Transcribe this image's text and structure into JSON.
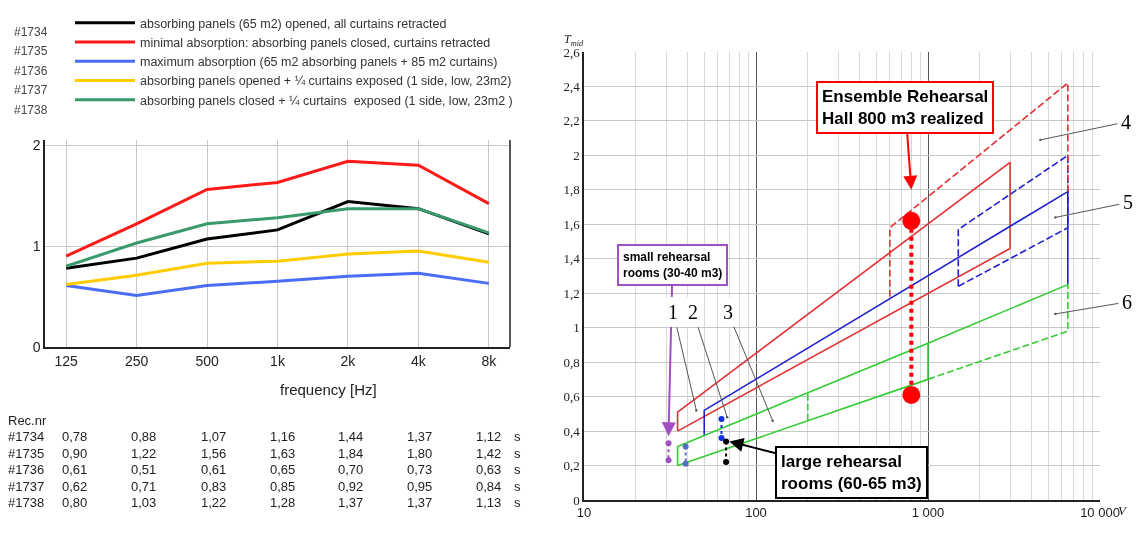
{
  "chart_data": [
    {
      "type": "line",
      "xlabel": "frequency [Hz]",
      "categories": [
        "125",
        "250",
        "500",
        "1k",
        "2k",
        "4k",
        "8k"
      ],
      "ylim": [
        0,
        2.05
      ],
      "yticks": [
        0,
        1,
        2
      ],
      "grid": true,
      "legend": "top",
      "annotations": [
        "#1734",
        "#1735",
        "#1736",
        "#1737",
        "#1738",
        "Rec.nr",
        "s"
      ],
      "series": [
        {
          "name": "absorbing panels (65 m2) opened, all curtains retracted",
          "color": "#000000",
          "values": [
            0.78,
            0.88,
            1.07,
            1.16,
            1.44,
            1.37,
            1.12
          ],
          "value_labels": [
            "0,78",
            "0,88",
            "1,07",
            "1,16",
            "1,44",
            "1,37",
            "1,12"
          ]
        },
        {
          "name": "minimal absorption: absorbing panels closed, curtains retracted",
          "color": "#ff1a1a",
          "values": [
            0.9,
            1.22,
            1.56,
            1.63,
            1.84,
            1.8,
            1.42
          ],
          "value_labels": [
            "0,90",
            "1,22",
            "1,56",
            "1,63",
            "1,84",
            "1,80",
            "1,42"
          ]
        },
        {
          "name": "maximum absorption (65 m2 absorbing panels + 85 m2 curtains)",
          "color": "#4a6cf7",
          "values": [
            0.61,
            0.51,
            0.61,
            0.65,
            0.7,
            0.73,
            0.63
          ],
          "value_labels": [
            "0,61",
            "0,51",
            "0,61",
            "0,65",
            "0,70",
            "0,73",
            "0,63"
          ]
        },
        {
          "name": "absorbing panels opened + ¼ curtains exposed (1 side, low, 23m2)",
          "color": "#ffcc00",
          "values": [
            0.62,
            0.71,
            0.83,
            0.85,
            0.92,
            0.95,
            0.84
          ],
          "value_labels": [
            "0,62",
            "0,71",
            "0,83",
            "0,85",
            "0,92",
            "0,95",
            "0,84"
          ]
        },
        {
          "name": "absorbing panels closed + ¼ curtains  exposed (1 side, low, 23m2 )",
          "color": "#3a9a6a",
          "values": [
            0.8,
            1.03,
            1.22,
            1.28,
            1.37,
            1.37,
            1.13
          ],
          "value_labels": [
            "0,80",
            "1,03",
            "1,22",
            "1,28",
            "1,37",
            "1,37",
            "1,13"
          ]
        }
      ]
    },
    {
      "type": "line",
      "xlabel": "V",
      "ylabel": "T$_{mid}$",
      "log": "x",
      "grid": true,
      "xlim": [
        10,
        10000
      ],
      "xticks": [
        10,
        100,
        {
          "value": 1000,
          "label": "1 000"
        },
        {
          "value": 10000,
          "label": "10 000"
        }
      ],
      "ylim": [
        0,
        2.6
      ],
      "yticks": [
        0,
        {
          "value": 0.2,
          "label": "0,2"
        },
        {
          "value": 0.4,
          "label": "0,4"
        },
        {
          "value": 0.6,
          "label": "0,6"
        },
        {
          "value": 0.8,
          "label": "0,8"
        },
        1,
        {
          "value": 1.2,
          "label": "1,2"
        },
        {
          "value": 1.4,
          "label": "1,4"
        },
        {
          "value": 1.6,
          "label": "1,6"
        },
        {
          "value": 1.8,
          "label": "1,8"
        },
        2,
        {
          "value": 2.2,
          "label": "2,2"
        },
        {
          "value": 2.4,
          "label": "2,4"
        },
        {
          "value": 2.6,
          "label": "2,6"
        }
      ],
      "series": [
        {
          "color": "#e03030",
          "line_style": "solid",
          "marker": "none",
          "x": [
            35,
            35,
            3000,
            3000
          ],
          "values": [
            0.4,
            0.51,
            1.96,
            1.46
          ]
        },
        {
          "color": "#e03030",
          "line_style": "solid",
          "marker": "none",
          "x": [
            35,
            3000
          ],
          "values": [
            0.4,
            1.46
          ]
        },
        {
          "color": "#2020d0",
          "line_style": "solid",
          "marker": "none",
          "x": [
            50,
            50,
            6500,
            6500
          ],
          "values": [
            0.37,
            0.52,
            1.79,
            1.25
          ]
        },
        {
          "color": "#2020d0",
          "line_style": "dashed",
          "marker": "none",
          "x": [
            1500,
            1500,
            6500,
            6500
          ],
          "values": [
            1.24,
            1.57,
            2.0,
            1.58
          ]
        },
        {
          "color": "#2020d0",
          "line_style": "dashed",
          "marker": "none",
          "x": [
            1500,
            6500
          ],
          "values": [
            1.24,
            1.58
          ]
        },
        {
          "color": "#e03030",
          "line_style": "dashed",
          "marker": "none",
          "x": [
            6500,
            6500,
            600,
            600
          ],
          "values": [
            1.79,
            2.42,
            1.58,
            1.18
          ]
        },
        {
          "color": "#33cc33",
          "line_style": "solid",
          "marker": "none",
          "x": [
            35,
            35,
            1000,
            1000
          ],
          "values": [
            0.2,
            0.31,
            0.91,
            0.7
          ]
        },
        {
          "color": "#33cc33",
          "line_style": "solid",
          "marker": "none",
          "x": [
            35,
            1000
          ],
          "values": [
            0.2,
            0.7
          ]
        },
        {
          "color": "#33cc33",
          "line_style": "solid",
          "marker": "none",
          "x": [
            1000,
            6500
          ],
          "values": [
            0.91,
            1.25
          ]
        },
        {
          "color": "#33cc33",
          "line_style": "dashed",
          "marker": "none",
          "x": [
            1000,
            6500,
            6500
          ],
          "values": [
            0.7,
            0.98,
            1.25
          ]
        },
        {
          "color": "#33cc33",
          "line_style": "dashed",
          "marker": "none",
          "x": [
            200,
            200
          ],
          "values": [
            0.46,
            0.62
          ]
        },
        {
          "color": "#ff0000",
          "line_style": "dotted",
          "marker": "circle",
          "x": [
            800,
            800
          ],
          "values": [
            1.62,
            0.61
          ]
        },
        {
          "color": "#a050c0",
          "line_style": "dotted",
          "marker": "circle",
          "x": [
            31,
            31
          ],
          "values": [
            0.33,
            0.23
          ]
        },
        {
          "color": "#5070c0",
          "line_style": "dotted",
          "marker": "circle",
          "x": [
            39,
            39
          ],
          "values": [
            0.31,
            0.21
          ]
        },
        {
          "color": "#1030e0",
          "line_style": "dotted",
          "marker": "circle",
          "x": [
            63,
            63
          ],
          "values": [
            0.47,
            0.36
          ]
        },
        {
          "color": "#000000",
          "line_style": "dotted",
          "marker": "circle",
          "x": [
            67,
            67
          ],
          "values": [
            0.34,
            0.22
          ]
        }
      ],
      "annotations": [
        "Ensemble Rehearsal\nHall 800 m3 realized",
        {
          "text": "small rehearsal\nrooms (30-40 m3)",
          "x": 31,
          "y": 0.37
        },
        {
          "text": "large rehearsal\nrooms (60-65 m3)",
          "x": 70,
          "y": 0.34
        },
        "1",
        {
          "text": "2",
          "x": 68,
          "y": 0.48
        },
        "3",
        "4",
        "5",
        "6"
      ]
    }
  ]
}
